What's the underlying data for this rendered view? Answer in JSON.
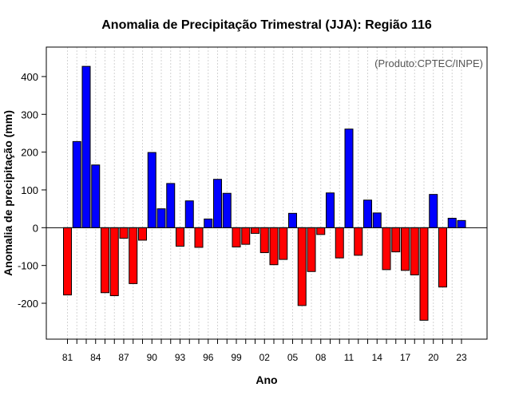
{
  "chart_data": {
    "type": "bar",
    "title": "Anomalia de Precipitação Trimestral (JJA): Região 116",
    "xlabel": "Ano",
    "ylabel": "Anomalia de precipitação (mm)",
    "annotation": "(Produto:CPTEC/INPE)",
    "ylim": [
      -295,
      478
    ],
    "yticks": [
      -200,
      -100,
      0,
      100,
      200,
      300,
      400
    ],
    "xtick_labels": [
      "81",
      "84",
      "87",
      "90",
      "93",
      "96",
      "99",
      "02",
      "05",
      "08",
      "11",
      "14",
      "17",
      "20",
      "23"
    ],
    "categories": [
      "1981",
      "1982",
      "1983",
      "1984",
      "1985",
      "1986",
      "1987",
      "1988",
      "1989",
      "1990",
      "1991",
      "1992",
      "1993",
      "1994",
      "1995",
      "1996",
      "1997",
      "1998",
      "1999",
      "2000",
      "2001",
      "2002",
      "2003",
      "2004",
      "2005",
      "2006",
      "2007",
      "2008",
      "2009",
      "2010",
      "2011",
      "2012",
      "2013",
      "2014",
      "2015",
      "2016",
      "2017",
      "2018",
      "2019",
      "2020",
      "2021",
      "2022",
      "2023"
    ],
    "values": [
      -178,
      228,
      427,
      166,
      -172,
      -180,
      -28,
      -148,
      -33,
      199,
      50,
      117,
      -49,
      71,
      -52,
      23,
      128,
      91,
      -51,
      -44,
      -15,
      -66,
      -98,
      -84,
      38,
      -206,
      -116,
      -18,
      92,
      -80,
      261,
      -73,
      73,
      39,
      -111,
      -64,
      -113,
      -125,
      -245,
      88,
      -157,
      25,
      19
    ],
    "colors": {
      "positive": "#0000ff",
      "negative": "#ff0000",
      "grid": "#d3d3d3",
      "zero_line": "#000000"
    },
    "grid": true
  }
}
